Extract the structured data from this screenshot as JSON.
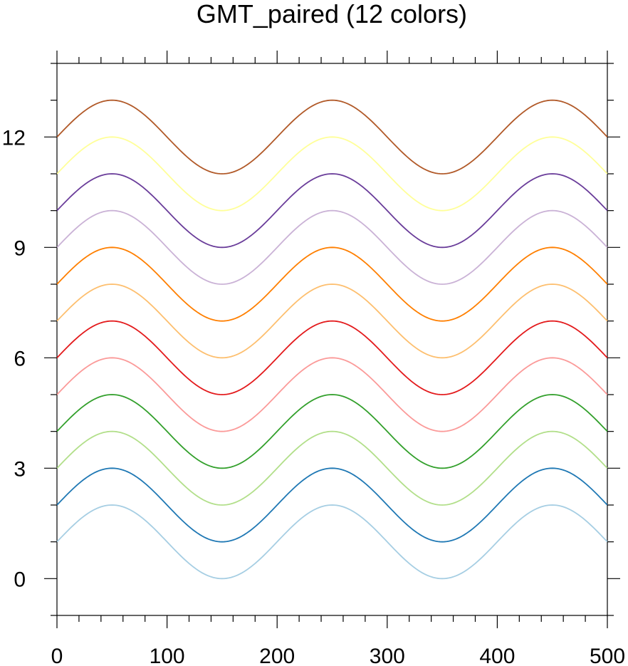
{
  "chart_data": {
    "type": "line",
    "title": "GMT_paired (12 colors)",
    "xlabel": "",
    "ylabel": "",
    "xlim": [
      0,
      500
    ],
    "ylim": [
      -1,
      14
    ],
    "x_ticks": [
      0,
      100,
      200,
      300,
      400,
      500
    ],
    "x_minor_step": 20,
    "y_ticks": [
      0,
      3,
      6,
      9,
      12
    ],
    "y_minor_step": 1,
    "grid": false,
    "curve": {
      "function": "offset + 1 + sin(2*pi*x/200)",
      "x_start": 0,
      "x_end": 500,
      "samples": 251
    },
    "series": [
      {
        "offset": 0,
        "color": "#a6cee3"
      },
      {
        "offset": 1,
        "color": "#1f78b4"
      },
      {
        "offset": 2,
        "color": "#b2df8a"
      },
      {
        "offset": 3,
        "color": "#33a02c"
      },
      {
        "offset": 4,
        "color": "#fb9a99"
      },
      {
        "offset": 5,
        "color": "#e31a1c"
      },
      {
        "offset": 6,
        "color": "#fdbf6f"
      },
      {
        "offset": 7,
        "color": "#ff7f00"
      },
      {
        "offset": 8,
        "color": "#cab2d6"
      },
      {
        "offset": 9,
        "color": "#6a3d9a"
      },
      {
        "offset": 10,
        "color": "#ffff99"
      },
      {
        "offset": 11,
        "color": "#b15928"
      }
    ]
  }
}
